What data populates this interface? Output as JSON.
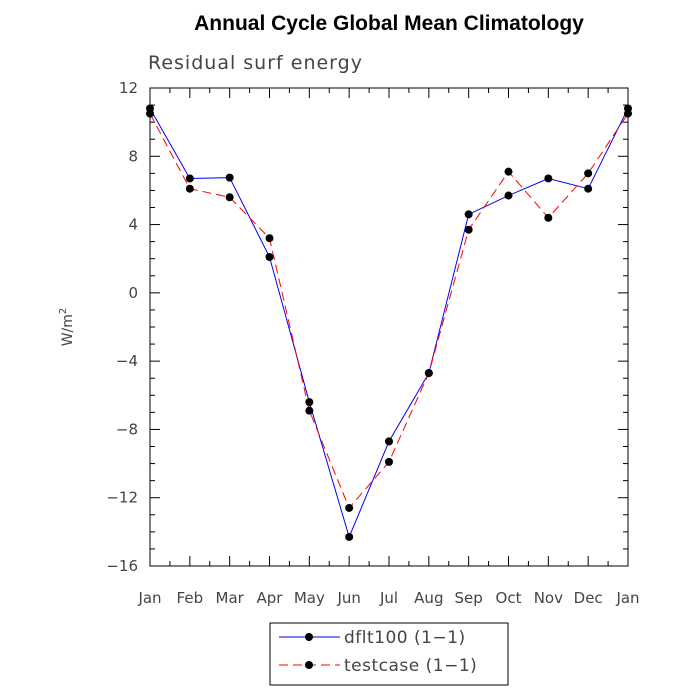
{
  "chart_data": {
    "type": "line",
    "title": "Annual Cycle Global Mean Climatology",
    "subtitle": "Residual surf energy",
    "ylabel": "W/m",
    "ylabel_superscript": "2",
    "xlabel": "",
    "categories": [
      "Jan",
      "Feb",
      "Mar",
      "Apr",
      "May",
      "Jun",
      "Jul",
      "Aug",
      "Sep",
      "Oct",
      "Nov",
      "Dec",
      "Jan"
    ],
    "ylim": [
      -16,
      12
    ],
    "yticks": [
      12,
      8,
      4,
      0,
      -4,
      -8,
      -12,
      -16
    ],
    "ytick_labels": [
      "12",
      "8",
      "4",
      "0",
      "−4",
      "−8",
      "−12",
      "−16"
    ],
    "legend_position": "bottom-center",
    "series": [
      {
        "name": "dflt100 (1−1)",
        "color": "#0000ff",
        "line_style": "solid",
        "marker": "circle",
        "values": [
          10.8,
          6.7,
          6.75,
          2.1,
          -6.4,
          -14.3,
          -8.7,
          -4.7,
          4.6,
          5.7,
          6.7,
          6.1,
          10.8
        ]
      },
      {
        "name": "testcase (1−1)",
        "color": "#ff0000",
        "line_style": "dashed",
        "marker": "circle",
        "values": [
          10.5,
          6.1,
          5.6,
          3.2,
          -6.9,
          -12.6,
          -9.9,
          -4.7,
          3.7,
          7.1,
          4.4,
          7.0,
          10.5
        ]
      }
    ]
  }
}
